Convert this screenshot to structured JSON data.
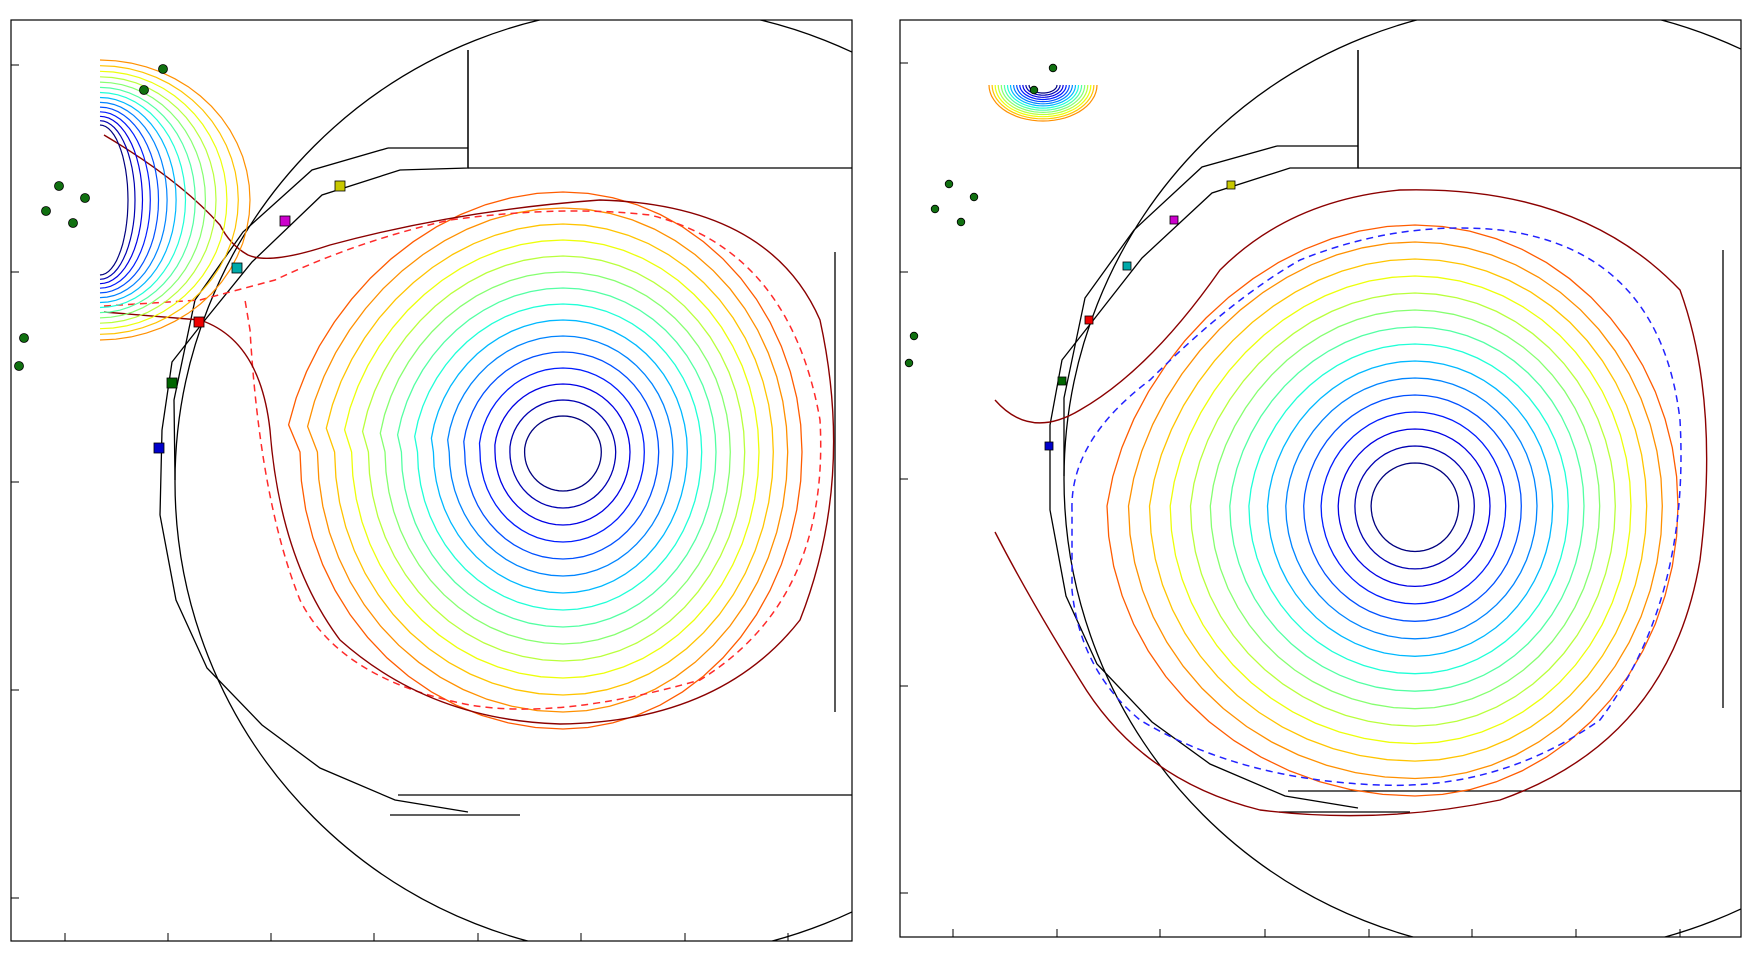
{
  "figure": {
    "panels": [
      {
        "id": "left",
        "contour_colors": [
          "#00007f",
          "#0000b2",
          "#0000e5",
          "#001cff",
          "#0050ff",
          "#0084ff",
          "#00b8ff",
          "#1fffd7",
          "#53ffa3",
          "#86ff70",
          "#b9ff3c",
          "#edff09",
          "#ffc400",
          "#ff9000",
          "#ff5c00",
          "#ff2800",
          "#a40000"
        ],
        "separatrix_color": "#ff2a2a",
        "outer_surface_color": "#8b0000",
        "probe_colors": [
          "#c8c800",
          "#cc00cc",
          "#00aaaa",
          "#ee0000",
          "#006600",
          "#0000cc"
        ],
        "coil_color": "#107010"
      },
      {
        "id": "right",
        "contour_colors": [
          "#00007f",
          "#0000b2",
          "#0000e5",
          "#001cff",
          "#0050ff",
          "#0084ff",
          "#00b8ff",
          "#1fffd7",
          "#53ffa3",
          "#86ff70",
          "#b9ff3c",
          "#edff09",
          "#ffc400",
          "#ff9000",
          "#ff5c00",
          "#ff2800",
          "#a40000"
        ],
        "separatrix_color": "#2222ff",
        "outer_surface_color": "#8b0000",
        "probe_colors": [
          "#c8c800",
          "#cc00cc",
          "#00aaaa",
          "#ee0000",
          "#006600",
          "#0000cc"
        ],
        "coil_color": "#107010"
      }
    ]
  }
}
